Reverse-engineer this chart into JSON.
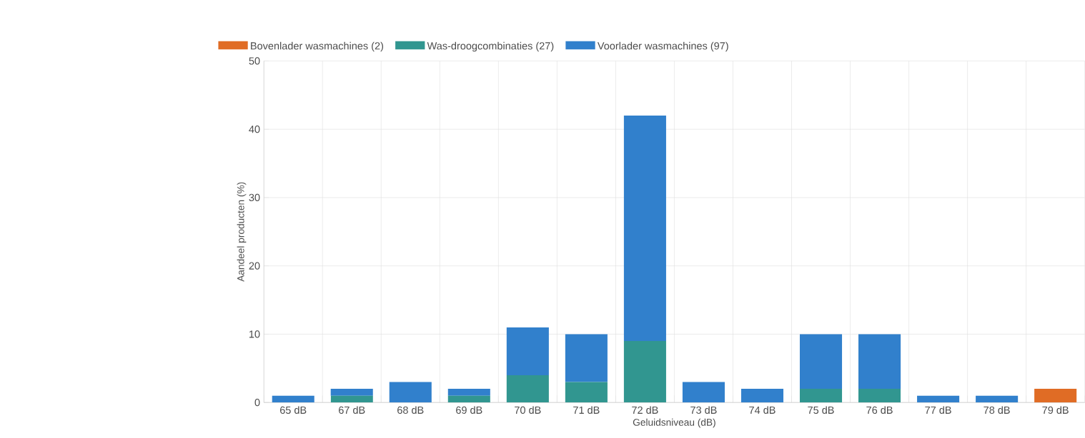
{
  "chart_data": {
    "type": "bar",
    "stacked": true,
    "xlabel": "Geluidsniveau (dB)",
    "ylabel": "Aandeel producten (%)",
    "categories": [
      "65 dB",
      "67 dB",
      "68 dB",
      "69 dB",
      "70 dB",
      "71 dB",
      "72 dB",
      "73 dB",
      "74 dB",
      "75 dB",
      "76 dB",
      "77 dB",
      "78 dB",
      "79 dB"
    ],
    "series": [
      {
        "name": "Bovenlader wasmachines (2)",
        "color": "#e06c25",
        "values": [
          0,
          0,
          0,
          0,
          0,
          0,
          0,
          0,
          0,
          0,
          0,
          0,
          0,
          2
        ]
      },
      {
        "name": "Was-droogcombinaties (27)",
        "color": "#319690",
        "values": [
          0,
          1,
          0,
          1,
          4,
          3,
          9,
          0,
          0,
          2,
          2,
          0,
          0,
          0
        ]
      },
      {
        "name": "Voorlader wasmachines (97)",
        "color": "#3180cc",
        "values": [
          1,
          1,
          3,
          1,
          7,
          7,
          33,
          3,
          2,
          8,
          8,
          1,
          1,
          0
        ]
      }
    ],
    "ylim": [
      0,
      50
    ],
    "yticks": [
      0,
      10,
      20,
      30,
      40,
      50
    ],
    "grid": true,
    "legend": "top left"
  }
}
